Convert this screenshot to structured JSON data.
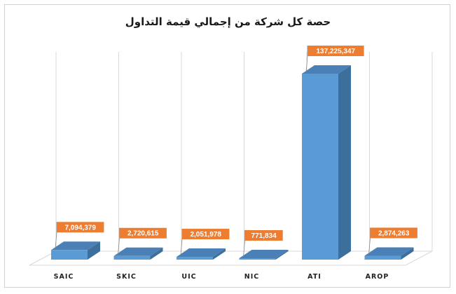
{
  "chart_data": {
    "type": "bar",
    "title": "حصة كل شركة من إجمالي قيمة التداول",
    "categories": [
      "SAIC",
      "SKIC",
      "UIC",
      "NIC",
      "ATI",
      "AROP"
    ],
    "values": [
      7094379,
      2720615,
      2051978,
      771834,
      137225347,
      2874263
    ],
    "value_labels": [
      "7,094,379",
      "2,720,615",
      "2,051,978",
      "771,834",
      "137,225,347",
      "2,874,263"
    ],
    "ylim": [
      0,
      140000000
    ],
    "grid": true,
    "legend": "none",
    "colors": {
      "bar_front": "#5b9bd5",
      "bar_side": "#3d6f9c",
      "bar_top": "#4a80b5",
      "label_bg": "#ed7d31",
      "grid": "#d9d9d9"
    }
  }
}
